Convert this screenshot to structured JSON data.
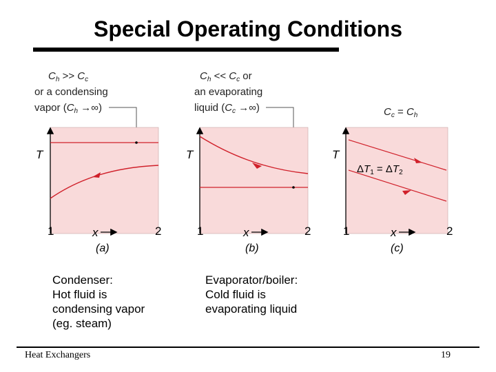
{
  "slide": {
    "title": "Special Operating Conditions",
    "footer_left": "Heat Exchangers",
    "page_number": "19"
  },
  "colors": {
    "panel_fill": "#f9dada",
    "curve": "#d0202a",
    "axis": "#000000"
  },
  "figure": {
    "axis_y_label": "T",
    "axis_x_label": "x",
    "x_start": "1",
    "x_end": "2",
    "panels": [
      {
        "id": "a",
        "label": "(a)",
        "annotation_lines": [
          "C_h >> C_c",
          "or a condensing",
          "vapor (C_h → ∞)"
        ]
      },
      {
        "id": "b",
        "label": "(b)",
        "annotation_lines": [
          "C_h << C_c or",
          "an evaporating",
          "liquid (C_c → ∞)"
        ]
      },
      {
        "id": "c",
        "label": "(c)",
        "annotation_lines": [
          "C_c = C_h"
        ],
        "inner_label": "ΔT1 = ΔT2"
      }
    ]
  },
  "captions": {
    "condenser": [
      "Condenser:",
      "Hot fluid is",
      "condensing vapor",
      "(eg. steam)"
    ],
    "evaporator": [
      "Evaporator/boiler:",
      "Cold fluid is",
      "evaporating liquid"
    ]
  }
}
